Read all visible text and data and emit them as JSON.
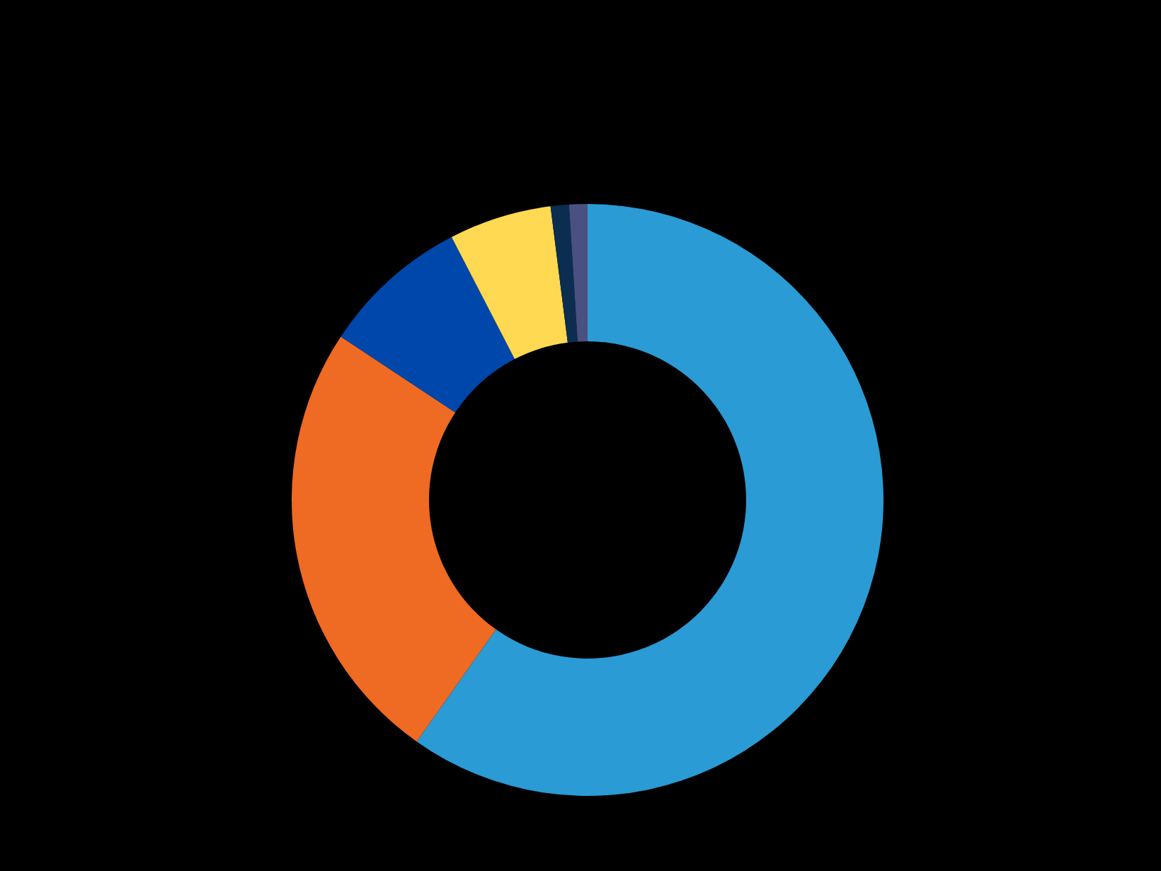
{
  "chart_data": {
    "type": "donut",
    "categories": [
      null,
      null,
      null,
      null,
      null,
      null
    ],
    "values": [
      59.8,
      24.5,
      8.1,
      5.6,
      1.0,
      1.0
    ],
    "colors": [
      "#2a9bd4",
      "#ef6a22",
      "#0047ab",
      "#ffd952",
      "#0b2e50",
      "#4a5080"
    ],
    "legend": false
  }
}
